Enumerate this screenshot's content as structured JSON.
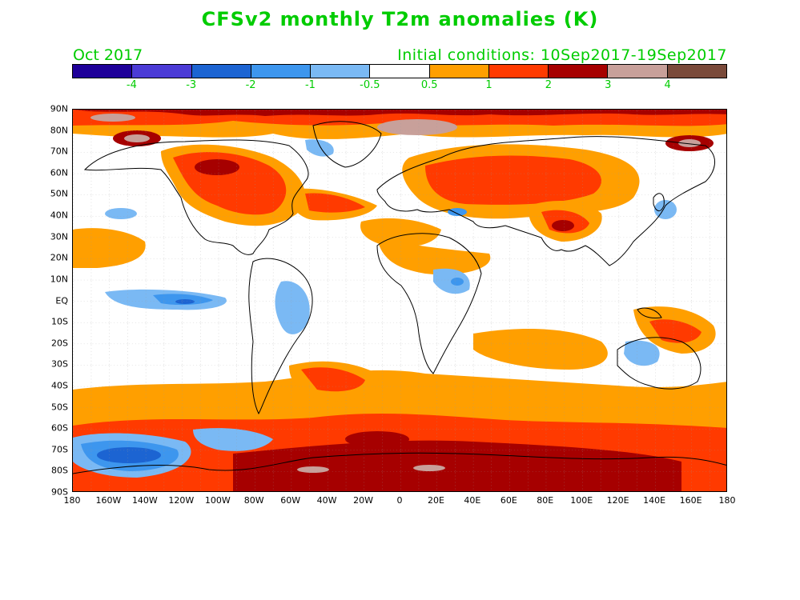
{
  "title": "CFSv2 monthly T2m anomalies (K)",
  "valid_month": "Oct 2017",
  "initial_conditions": "Initial conditions: 10Sep2017-19Sep2017",
  "colorbar": {
    "colors": [
      "#1e0099",
      "#4b3bd6",
      "#1c64d2",
      "#3d96ee",
      "#7ab9f4",
      "#ffffff",
      "#ff9f00",
      "#ff3a00",
      "#a60000",
      "#c8a09a",
      "#7a4a3a"
    ],
    "labels": [
      "-4",
      "-3",
      "-2",
      "-1",
      "-0.5",
      "0.5",
      "1",
      "2",
      "3",
      "4"
    ]
  },
  "lat_labels": [
    "90N",
    "80N",
    "70N",
    "60N",
    "50N",
    "40N",
    "30N",
    "20N",
    "10N",
    "EQ",
    "10S",
    "20S",
    "30S",
    "40S",
    "50S",
    "60S",
    "70S",
    "80S",
    "90S"
  ],
  "lon_labels": [
    "180",
    "160W",
    "140W",
    "120W",
    "100W",
    "80W",
    "60W",
    "40W",
    "20W",
    "0",
    "20E",
    "40E",
    "60E",
    "80E",
    "100E",
    "120E",
    "140E",
    "160E",
    "180"
  ]
}
